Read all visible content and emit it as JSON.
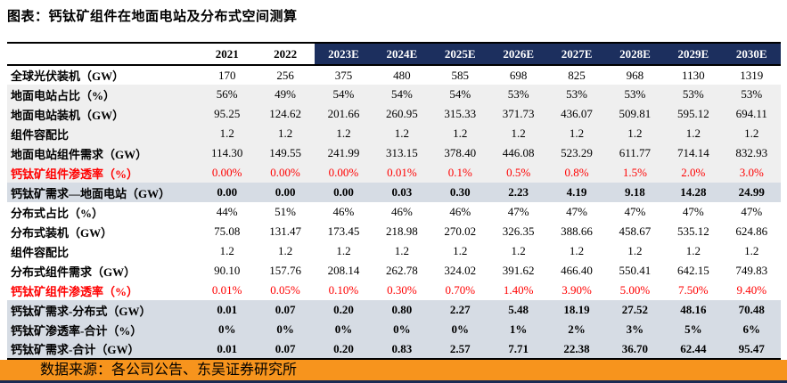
{
  "title": "图表：钙钛矿组件在地面电站及分布式空间测算",
  "source": "数据来源：各公司公告、东吴证券研究所",
  "colors": {
    "header_navy": "#1c2f5e",
    "band_gray": "#efefef",
    "band_blue_gray": "#d6dce4",
    "red_text": "#ff0000",
    "orange_bar": "#f7941d",
    "bottom_strip_navy": "#1a2b54"
  },
  "chart_data": {
    "type": "table",
    "title": "钙钛矿组件在地面电站及分布式空间测算",
    "columns": [
      "2021",
      "2022",
      "2023E",
      "2024E",
      "2025E",
      "2026E",
      "2027E",
      "2028E",
      "2029E",
      "2030E"
    ],
    "highlight_columns_from": "2023E",
    "rows": [
      {
        "label": "全球光伏装机（GW）",
        "style": "white",
        "values": [
          "170",
          "256",
          "375",
          "480",
          "585",
          "698",
          "825",
          "968",
          "1130",
          "1319"
        ]
      },
      {
        "label": "地面电站占比（%）",
        "style": "gray",
        "values": [
          "56%",
          "49%",
          "54%",
          "54%",
          "54%",
          "53%",
          "53%",
          "53%",
          "53%",
          "53%"
        ]
      },
      {
        "label": "地面电站装机（GW）",
        "style": "gray",
        "values": [
          "95.25",
          "124.62",
          "201.66",
          "260.95",
          "315.33",
          "371.73",
          "436.07",
          "509.81",
          "595.12",
          "694.11"
        ]
      },
      {
        "label": "组件容配比",
        "style": "gray",
        "values": [
          "1.2",
          "1.2",
          "1.2",
          "1.2",
          "1.2",
          "1.2",
          "1.2",
          "1.2",
          "1.2",
          "1.2"
        ]
      },
      {
        "label": "地面电站组件需求（GW）",
        "style": "gray",
        "values": [
          "114.30",
          "149.55",
          "241.99",
          "313.15",
          "378.40",
          "446.08",
          "523.29",
          "611.77",
          "714.14",
          "832.93"
        ]
      },
      {
        "label": "钙钛矿组件渗透率（%）",
        "style": "red-gray",
        "values": [
          "0.00%",
          "0.00%",
          "0.00%",
          "0.01%",
          "0.1%",
          "0.5%",
          "0.8%",
          "1.5%",
          "2.0%",
          "3.0%"
        ]
      },
      {
        "label": "钙钛矿需求—地面电站（GW）",
        "style": "total",
        "values": [
          "0.00",
          "0.00",
          "0.00",
          "0.03",
          "0.30",
          "2.23",
          "4.19",
          "9.18",
          "14.28",
          "24.99"
        ]
      },
      {
        "label": "分布式占比（%）",
        "style": "white",
        "values": [
          "44%",
          "51%",
          "46%",
          "46%",
          "46%",
          "47%",
          "47%",
          "47%",
          "47%",
          "47%"
        ]
      },
      {
        "label": "分布式装机（GW）",
        "style": "white",
        "values": [
          "75.08",
          "131.47",
          "173.45",
          "218.98",
          "270.02",
          "326.35",
          "388.66",
          "458.67",
          "535.12",
          "624.86"
        ]
      },
      {
        "label": "组件容配比",
        "style": "white",
        "values": [
          "1.2",
          "1.2",
          "1.2",
          "1.2",
          "1.2",
          "1.2",
          "1.2",
          "1.2",
          "1.2",
          "1.2"
        ]
      },
      {
        "label": "分布式组件需求（GW）",
        "style": "white",
        "values": [
          "90.10",
          "157.76",
          "208.14",
          "262.78",
          "324.02",
          "391.62",
          "466.40",
          "550.41",
          "642.15",
          "749.83"
        ]
      },
      {
        "label": "钙钛矿组件渗透率（%）",
        "style": "red-white",
        "values": [
          "0.01%",
          "0.05%",
          "0.10%",
          "0.30%",
          "0.70%",
          "1.40%",
          "3.90%",
          "5.00%",
          "7.50%",
          "9.40%"
        ]
      },
      {
        "label": "钙钛矿需求-分布式（GW）",
        "style": "total",
        "values": [
          "0.01",
          "0.07",
          "0.20",
          "0.80",
          "2.27",
          "5.48",
          "18.19",
          "27.52",
          "48.16",
          "70.48"
        ]
      },
      {
        "label": "钙钛矿渗透率-合计（%）",
        "style": "total",
        "values": [
          "0%",
          "0%",
          "0%",
          "0%",
          "0%",
          "1%",
          "2%",
          "3%",
          "5%",
          "6%"
        ]
      },
      {
        "label": "钙钛矿需求-合计（GW）",
        "style": "total",
        "values": [
          "0.01",
          "0.07",
          "0.20",
          "0.83",
          "2.57",
          "7.71",
          "22.38",
          "36.70",
          "62.44",
          "95.47"
        ]
      }
    ]
  }
}
